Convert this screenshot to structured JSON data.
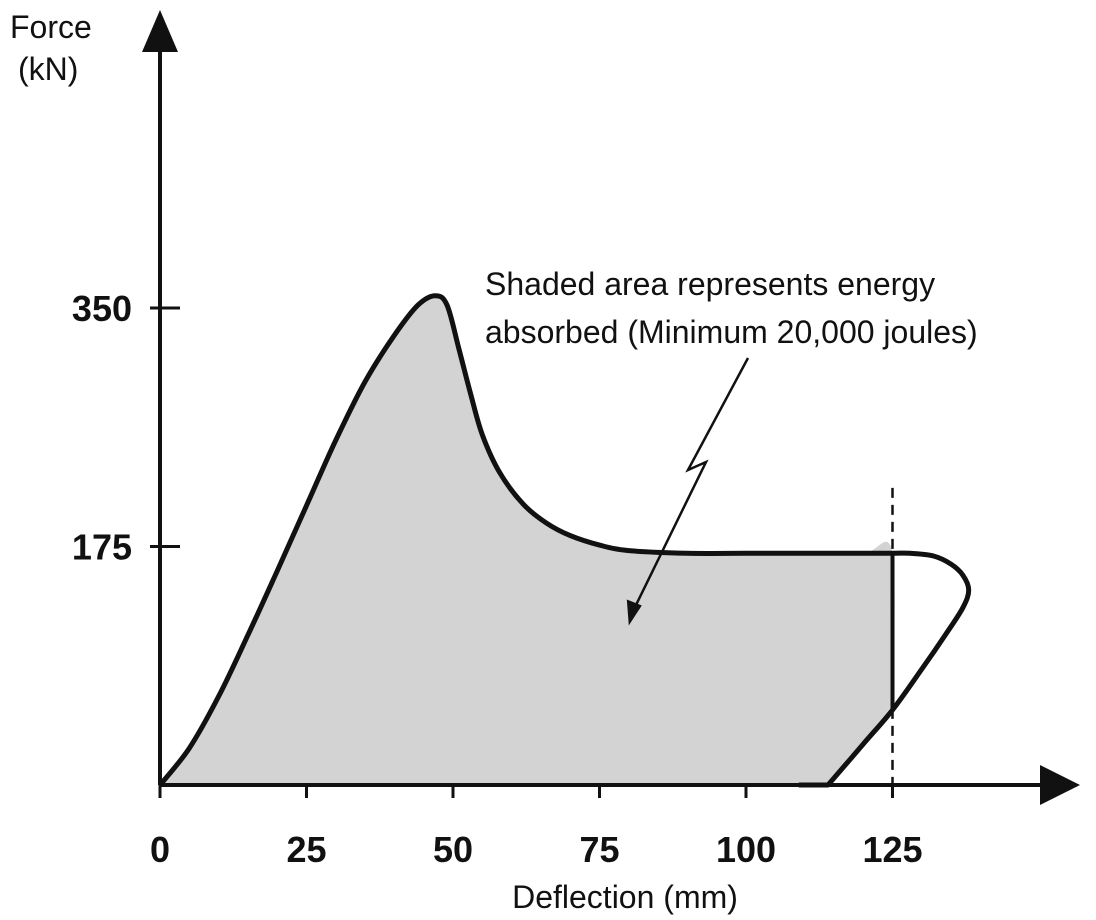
{
  "chart_data": {
    "type": "line",
    "xlabel": "Deflection (mm)",
    "ylabel_line1": "Force",
    "ylabel_line2": "(kN)",
    "x_ticks": [
      {
        "value": 0,
        "label": "0"
      },
      {
        "value": 25,
        "label": "25"
      },
      {
        "value": 50,
        "label": "50"
      },
      {
        "value": 75,
        "label": "75"
      },
      {
        "value": 100,
        "label": "100"
      },
      {
        "value": 125,
        "label": "125"
      }
    ],
    "y_ticks": [
      {
        "value": 175,
        "label": "175"
      },
      {
        "value": 350,
        "label": "350"
      }
    ],
    "xlim": [
      0,
      150
    ],
    "ylim": [
      0,
      390
    ],
    "curve": {
      "x": [
        0,
        5,
        10,
        15,
        20,
        25,
        30,
        35,
        40,
        44,
        47,
        49,
        51,
        53,
        55,
        58,
        62,
        66,
        70,
        75,
        80,
        90,
        100,
        110,
        120,
        125,
        128,
        132,
        135,
        137,
        138,
        137,
        134,
        130,
        125,
        120,
        114,
        109
      ],
      "y": [
        0,
        27,
        65,
        110,
        157,
        205,
        253,
        296,
        330,
        352,
        359,
        352,
        320,
        287,
        257,
        229,
        206,
        192,
        183,
        176,
        172,
        170,
        170,
        170,
        170,
        170,
        170,
        168,
        162,
        154,
        143,
        130,
        110,
        85,
        55,
        30,
        0,
        0
      ]
    },
    "shaded_region": {
      "x": [
        0,
        5,
        10,
        15,
        20,
        25,
        30,
        35,
        40,
        44,
        47,
        49,
        51,
        53,
        55,
        58,
        62,
        66,
        70,
        75,
        80,
        90,
        100,
        110,
        120,
        125,
        125,
        120,
        114,
        0
      ],
      "y": [
        0,
        27,
        65,
        110,
        157,
        205,
        253,
        296,
        330,
        352,
        359,
        352,
        320,
        287,
        257,
        229,
        206,
        192,
        183,
        176,
        172,
        170,
        170,
        170,
        170,
        170,
        55,
        30,
        0,
        0
      ]
    },
    "dashed_line_x": 125,
    "annotation": {
      "line1": "Shaded area represents energy",
      "line2": "absorbed (Minimum 20,000 joules)",
      "arrow_target": {
        "x": 80,
        "y": 120
      }
    },
    "colors": {
      "shade": "#d3d3d3",
      "line": "#111111",
      "text": "#111111"
    }
  }
}
